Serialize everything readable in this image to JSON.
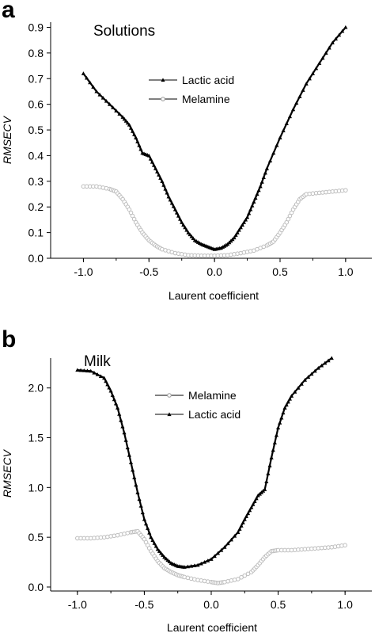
{
  "panels": [
    {
      "letter": "a",
      "chart_data": {
        "type": "line",
        "title": "Solutions",
        "xlabel": "Laurent coefficient",
        "ylabel": "RMSECV",
        "xlim": [
          -1.25,
          1.2
        ],
        "ylim": [
          0.0,
          0.92
        ],
        "xticks": [
          "-1.0",
          "-0.5",
          "0.0",
          "0.5",
          "1.0"
        ],
        "yticks": [
          "0.0",
          "0.1",
          "0.2",
          "0.3",
          "0.4",
          "0.5",
          "0.6",
          "0.7",
          "0.8",
          "0.9"
        ],
        "legend_position": "top-center",
        "series": [
          {
            "name": "Lactic acid",
            "marker": "triangle-filled",
            "color": "#000000",
            "x": [
              -1.0,
              -0.9,
              -0.8,
              -0.7,
              -0.65,
              -0.6,
              -0.55,
              -0.5,
              -0.45,
              -0.4,
              -0.35,
              -0.3,
              -0.25,
              -0.2,
              -0.15,
              -0.1,
              -0.05,
              0.0,
              0.05,
              0.1,
              0.15,
              0.2,
              0.25,
              0.3,
              0.35,
              0.4,
              0.5,
              0.6,
              0.7,
              0.8,
              0.9,
              1.0
            ],
            "y": [
              0.72,
              0.65,
              0.6,
              0.55,
              0.52,
              0.47,
              0.41,
              0.4,
              0.35,
              0.3,
              0.24,
              0.19,
              0.14,
              0.1,
              0.07,
              0.055,
              0.045,
              0.035,
              0.04,
              0.055,
              0.08,
              0.12,
              0.16,
              0.22,
              0.28,
              0.35,
              0.47,
              0.58,
              0.68,
              0.76,
              0.84,
              0.9
            ]
          },
          {
            "name": "Melamine",
            "marker": "circle-open",
            "color": "#bdbdbd",
            "x": [
              -1.0,
              -0.9,
              -0.8,
              -0.75,
              -0.7,
              -0.65,
              -0.6,
              -0.55,
              -0.5,
              -0.45,
              -0.4,
              -0.3,
              -0.2,
              -0.1,
              0.0,
              0.1,
              0.2,
              0.3,
              0.4,
              0.45,
              0.5,
              0.55,
              0.6,
              0.65,
              0.7,
              0.8,
              0.9,
              1.0
            ],
            "y": [
              0.28,
              0.28,
              0.27,
              0.26,
              0.23,
              0.19,
              0.14,
              0.1,
              0.07,
              0.05,
              0.035,
              0.02,
              0.012,
              0.01,
              0.01,
              0.012,
              0.02,
              0.03,
              0.05,
              0.065,
              0.1,
              0.14,
              0.19,
              0.23,
              0.25,
              0.255,
              0.26,
              0.265
            ]
          }
        ]
      }
    },
    {
      "letter": "b",
      "chart_data": {
        "type": "line",
        "title": "Milk",
        "xlabel": "Laurent coefficient",
        "ylabel": "RMSECV",
        "xlim": [
          -1.2,
          1.2
        ],
        "ylim": [
          -0.04,
          2.3
        ],
        "xticks": [
          "-1.0",
          "-0.5",
          "0.0",
          "0.5",
          "1.0"
        ],
        "yticks": [
          "0.0",
          "0.5",
          "1.0",
          "1.5",
          "2.0"
        ],
        "legend_position": "top-center",
        "series": [
          {
            "name": "Melamine",
            "marker": "circle-open",
            "color": "#bdbdbd",
            "x": [
              -1.0,
              -0.9,
              -0.8,
              -0.7,
              -0.6,
              -0.55,
              -0.5,
              -0.45,
              -0.4,
              -0.35,
              -0.3,
              -0.25,
              -0.2,
              -0.1,
              0.0,
              0.05,
              0.1,
              0.2,
              0.3,
              0.35,
              0.4,
              0.45,
              0.5,
              0.6,
              0.7,
              0.8,
              0.9,
              1.0
            ],
            "y": [
              0.49,
              0.49,
              0.5,
              0.52,
              0.55,
              0.56,
              0.48,
              0.36,
              0.26,
              0.19,
              0.15,
              0.12,
              0.1,
              0.07,
              0.05,
              0.04,
              0.05,
              0.08,
              0.15,
              0.22,
              0.3,
              0.36,
              0.37,
              0.37,
              0.38,
              0.39,
              0.4,
              0.42
            ]
          },
          {
            "name": "Lactic acid",
            "marker": "triangle-filled",
            "color": "#000000",
            "x": [
              -1.0,
              -0.9,
              -0.8,
              -0.75,
              -0.7,
              -0.65,
              -0.6,
              -0.55,
              -0.5,
              -0.45,
              -0.4,
              -0.35,
              -0.3,
              -0.25,
              -0.2,
              -0.1,
              0.0,
              0.1,
              0.2,
              0.25,
              0.3,
              0.35,
              0.4,
              0.45,
              0.5,
              0.55,
              0.6,
              0.7,
              0.8,
              0.9
            ],
            "y": [
              2.18,
              2.17,
              2.1,
              1.97,
              1.8,
              1.55,
              1.25,
              0.95,
              0.68,
              0.5,
              0.38,
              0.3,
              0.24,
              0.21,
              0.2,
              0.22,
              0.28,
              0.4,
              0.55,
              0.68,
              0.8,
              0.92,
              0.98,
              1.3,
              1.6,
              1.8,
              1.92,
              2.08,
              2.2,
              2.3
            ]
          }
        ]
      }
    }
  ]
}
